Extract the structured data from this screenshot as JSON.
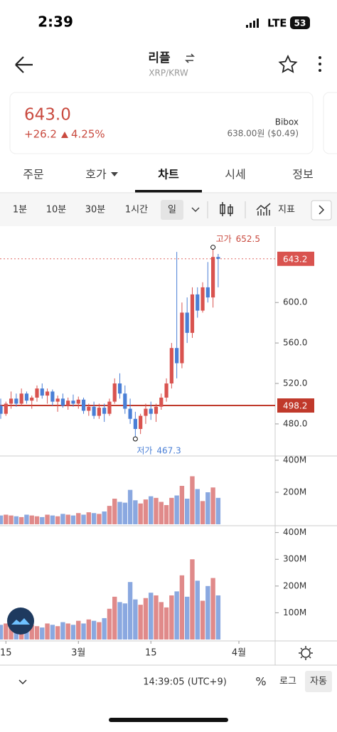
{
  "status": {
    "time": "2:39",
    "network": "LTE",
    "battery": "53"
  },
  "header": {
    "title": "리플",
    "subtitle": "XRP/KRW"
  },
  "price_card": {
    "price": "643.0",
    "change": "+26.2",
    "change_pct": "4.25%",
    "exchange": "Bibox",
    "exchange_price": "638.00원 ($0.49)"
  },
  "tabs": [
    "주문",
    "호가",
    "차트",
    "시세",
    "정보"
  ],
  "intervals": [
    "1분",
    "10분",
    "30분",
    "1시간",
    "일"
  ],
  "indicator": "지표",
  "chart_data": {
    "type": "candlestick",
    "ohlc": [
      [
        498,
        505,
        485,
        490
      ],
      [
        490,
        502,
        488,
        500
      ],
      [
        500,
        512,
        495,
        505
      ],
      [
        505,
        510,
        497,
        500
      ],
      [
        500,
        515,
        498,
        510
      ],
      [
        510,
        512,
        500,
        503
      ],
      [
        503,
        508,
        495,
        506
      ],
      [
        506,
        518,
        502,
        515
      ],
      [
        515,
        520,
        505,
        508
      ],
      [
        508,
        515,
        500,
        512
      ],
      [
        512,
        514,
        498,
        502
      ],
      [
        502,
        508,
        492,
        505
      ],
      [
        505,
        510,
        496,
        498
      ],
      [
        498,
        506,
        494,
        503
      ],
      [
        503,
        509,
        497,
        500
      ],
      [
        500,
        507,
        495,
        504
      ],
      [
        504,
        506,
        490,
        493
      ],
      [
        493,
        500,
        488,
        497
      ],
      [
        497,
        502,
        485,
        488
      ],
      [
        488,
        500,
        485,
        496
      ],
      [
        496,
        500,
        482,
        490
      ],
      [
        490,
        505,
        488,
        502
      ],
      [
        502,
        525,
        500,
        520
      ],
      [
        520,
        530,
        505,
        510
      ],
      [
        510,
        518,
        490,
        495
      ],
      [
        495,
        505,
        480,
        485
      ],
      [
        485,
        492,
        467.3,
        475
      ],
      [
        475,
        490,
        470,
        488
      ],
      [
        488,
        500,
        480,
        495
      ],
      [
        495,
        502,
        484,
        490
      ],
      [
        490,
        500,
        482,
        497
      ],
      [
        497,
        510,
        494,
        506
      ],
      [
        506,
        525,
        502,
        520
      ],
      [
        520,
        560,
        515,
        555
      ],
      [
        555,
        650,
        525,
        540
      ],
      [
        540,
        600,
        535,
        590
      ],
      [
        590,
        605,
        560,
        570
      ],
      [
        570,
        615,
        565,
        608
      ],
      [
        608,
        615,
        585,
        592
      ],
      [
        592,
        620,
        590,
        615
      ],
      [
        615,
        640,
        600,
        605
      ],
      [
        605,
        652.5,
        595,
        645
      ],
      [
        645,
        648,
        615,
        643.2
      ]
    ],
    "up_color": "#d9534f",
    "down_color": "#4a7fd6",
    "ylim": [
      449,
      674
    ],
    "yticks": [
      {
        "value": 480,
        "label": "480.0"
      },
      {
        "value": 520,
        "label": "520.0"
      },
      {
        "value": 560,
        "label": "560.0"
      },
      {
        "value": 600,
        "label": "600.0"
      }
    ],
    "ref_price": 498.2,
    "high_label": "고가",
    "low_label": "저가",
    "xlim": [
      -0.14,
      53
    ],
    "xticks": [
      {
        "value": 1,
        "label": "15"
      },
      {
        "value": 15,
        "label": "3월"
      },
      {
        "value": 29,
        "label": "15"
      },
      {
        "value": 46,
        "label": "4월"
      }
    ],
    "volume": [
      55,
      60,
      55,
      50,
      45,
      60,
      55,
      50,
      45,
      60,
      55,
      50,
      65,
      60,
      55,
      70,
      60,
      75,
      70,
      65,
      80,
      115,
      160,
      140,
      135,
      215,
      150,
      130,
      155,
      175,
      165,
      140,
      120,
      165,
      180,
      240,
      160,
      300,
      220,
      145,
      200,
      230,
      165
    ],
    "volume_ylim_1": [
      0,
      400
    ],
    "volume_yticks_1": [
      {
        "value": 200,
        "label": "200M"
      },
      {
        "value": 400,
        "label": "400M"
      }
    ],
    "volume_ylim_2": [
      0,
      415
    ],
    "volume_yticks_2": [
      {
        "value": 100,
        "label": "100M"
      },
      {
        "value": 200,
        "label": "200M"
      },
      {
        "value": 300,
        "label": "300M"
      },
      {
        "value": 400,
        "label": "400M"
      }
    ]
  },
  "footer": {
    "time": "14:39:05 (UTC+9)",
    "percent": "%",
    "log": "로그",
    "auto": "자동"
  }
}
